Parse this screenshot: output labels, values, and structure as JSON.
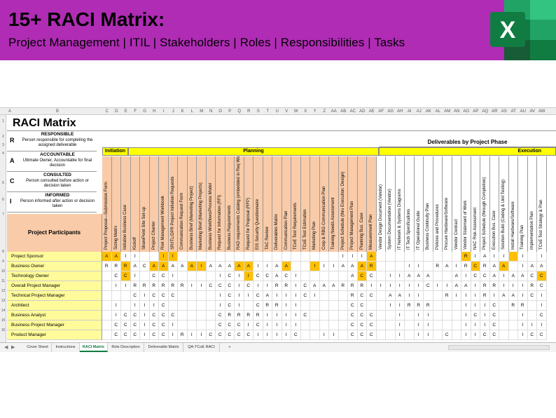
{
  "banner": {
    "title": "15+ RACI Matrix:",
    "subtitle": "Project Management | ITIL | Stakeholders | Roles | Responsibilities | Tasks",
    "logo_letter": "X",
    "colors": {
      "banner": "#b02cb5",
      "excel_dark": "#185c37",
      "excel_mid": "#21a366",
      "excel_light": "#33c481"
    }
  },
  "sheet": {
    "columns": [
      "A",
      "B",
      "C",
      "D",
      "E",
      "F",
      "G",
      "H",
      "I",
      "J",
      "K",
      "L",
      "M",
      "N",
      "O",
      "P",
      "Q",
      "R",
      "S",
      "T",
      "U",
      "V",
      "W",
      "X",
      "Y",
      "Z",
      "AA",
      "AB",
      "AC",
      "AD",
      "AE",
      "AF",
      "AG",
      "AH",
      "AI",
      "AJ",
      "AK",
      "AL",
      "AM",
      "AN",
      "AO",
      "AP",
      "AQ",
      "AR",
      "AS",
      "AT",
      "AU",
      "AV",
      "AW"
    ],
    "rows": [
      "1",
      "2",
      "3",
      "4",
      "5",
      "6",
      "7",
      "8",
      "9",
      "10",
      "11",
      "12",
      "13",
      "14",
      "15",
      "16"
    ],
    "matrix_title": "RACI  Matrix",
    "legend": [
      {
        "letter": "R",
        "head": "RESPONSIBLE",
        "desc": "Person responsible for completing the assigned deliverable"
      },
      {
        "letter": "A",
        "head": "ACCOUNTABLE",
        "desc": "Ultimate Owner, Accountable for final decision"
      },
      {
        "letter": "C",
        "head": "CONSULTED",
        "desc": "Person consulted before action or decision taken"
      },
      {
        "letter": "I",
        "head": "INFORMED",
        "desc": "Person informed after action or decision taken"
      }
    ],
    "deliverables_header": "Deliverables by Project Phase",
    "phases": {
      "initiation": "Initiation",
      "planning": "Planning",
      "execution": "Execution"
    },
    "participants_header": "Project Participants",
    "deliverables": [
      "Project Proposal—Submission Form",
      "Sizing Matrix",
      "Initiation Business Case",
      "Kickoff",
      "SharePoint Site Set-up",
      "Project Charter",
      "Risk Management Workbook",
      "SR/ITL/DPR Project Initiation Requests",
      "Communication Request Form",
      "Business Brief (Marketing Project)",
      "Marketing Brief (Marketing Projects)",
      "Business Workflows/Process Model",
      "Request for Information (RFI)",
      "Business Requirements",
      "RAD requirements Catalog (embedded in Req Workbook)",
      "Request for Proposal (RFP)",
      "EIS Security Questionnaire",
      "TAC Review",
      "Deliverables Matrix",
      "Communication Plan",
      "TCoE Test Requirements",
      "TCoE Test Estimation",
      "Marketing Plan",
      "Corp & RBG Communication Plan",
      "Training Needs Assessment",
      "Project Schedule (thru Execution: Design)",
      "Project Management Plan",
      "Planning Bus. Case",
      "Measurement Plan",
      "Vendor Design Document (Vendor)",
      "System Documentation (Vendor)",
      "IT Network & Systems Diagrams",
      "IT Tech Specifications",
      "IT Operational Guide",
      "Business Continuity Plan",
      "Policies and Procedures",
      "Procure Hardware/Software",
      "Vendor Contract",
      "Vendor Statement of Work",
      "NAC Risk Assessment",
      "Project Schedule (through Completion)",
      "Execution Bus. Case",
      "Solution Build (Coding & Unit Testing)",
      "Install Hardware/Software",
      "Training Plan",
      "Implementation Plan",
      "TCoE Test Strategy & Plan"
    ],
    "participants": [
      {
        "name": "Project Sponsor",
        "cells": [
          "A",
          "A",
          "I",
          "I",
          "",
          "",
          "I",
          "I",
          "",
          "",
          "",
          "",
          "",
          "",
          "",
          "",
          "",
          "",
          "",
          "",
          "",
          "",
          "",
          "",
          "",
          "I",
          "I",
          "I",
          "A",
          "",
          "",
          "",
          "",
          "",
          "",
          "",
          "",
          "",
          "R",
          "I",
          "A",
          "I",
          "I",
          "",
          "I",
          "",
          "I"
        ]
      },
      {
        "name": "Business Owner",
        "cells": [
          "R",
          "R",
          "R",
          "A",
          "C",
          "A",
          "A",
          "A",
          "A",
          "A",
          "I",
          "A",
          "A",
          "A",
          "A",
          "A",
          "I",
          "I",
          "A",
          "A",
          "",
          "",
          "I",
          "I",
          "I",
          "A",
          "A",
          "A",
          "R",
          "",
          "",
          "",
          "I",
          "I",
          "",
          "R",
          "A",
          "I",
          "R",
          "C",
          "R",
          "A",
          "A",
          "",
          "I",
          "A",
          "A"
        ]
      },
      {
        "name": "Technology Owner",
        "cells": [
          "",
          "C",
          "C",
          "I",
          "",
          "C",
          "C",
          "I",
          "",
          "",
          "",
          "",
          "I",
          "C",
          "I",
          "I",
          "C",
          "C",
          "A",
          "C",
          "I",
          "",
          "",
          "",
          "",
          "",
          "A",
          "C",
          "C",
          "",
          "I",
          "I",
          "A",
          "A",
          "A",
          "",
          "",
          "A",
          "I",
          "C",
          "C",
          "A",
          "I",
          "A",
          "A",
          "C",
          "C"
        ]
      },
      {
        "name": "Overall Project Manager",
        "cells": [
          "",
          "I",
          "I",
          "R",
          "R",
          "R",
          "R",
          "R",
          "R",
          "I",
          "I",
          "C",
          "C",
          "C",
          "I",
          "C",
          "I",
          "I",
          "R",
          "R",
          "I",
          "C",
          "A",
          "A",
          "A",
          "R",
          "R",
          "R",
          "I",
          "I",
          "I",
          "I",
          "I",
          "I",
          "C",
          "I",
          "I",
          "A",
          "A",
          "I",
          "R",
          "R",
          "I",
          "I",
          "I",
          "R",
          "C"
        ]
      },
      {
        "name": "Technical Project Manager",
        "cells": [
          "",
          "",
          "",
          "C",
          "I",
          "C",
          "C",
          "C",
          "",
          "",
          "",
          "",
          "I",
          "C",
          "I",
          "I",
          "C",
          "A",
          "I",
          "I",
          "I",
          "C",
          "I",
          "",
          "",
          "",
          "R",
          "C",
          "C",
          "",
          "A",
          "A",
          "I",
          "I",
          "",
          "",
          "R",
          "I",
          "I",
          "I",
          "R",
          "I",
          "A",
          "A",
          "I",
          "C",
          "I"
        ]
      },
      {
        "name": "Architect",
        "cells": [
          "",
          "I",
          "",
          "I",
          "I",
          "I",
          "C",
          "",
          "",
          "",
          "",
          "",
          "I",
          "C",
          "I",
          "",
          "C",
          "R",
          "R",
          "I",
          "I",
          "",
          "",
          "",
          "",
          "",
          "C",
          "C",
          "",
          "",
          "I",
          "I",
          "R",
          "R",
          "R",
          "",
          "",
          "",
          "I",
          "I",
          "I",
          "C",
          "",
          "R",
          "R",
          "",
          "I"
        ]
      },
      {
        "name": "Business Analyst",
        "cells": [
          "",
          "I",
          "C",
          "C",
          "I",
          "C",
          "C",
          "C",
          "",
          "",
          "",
          "",
          "C",
          "R",
          "R",
          "R",
          "R",
          "I",
          "I",
          "I",
          "I",
          "C",
          "",
          "",
          "",
          "",
          "C",
          "C",
          "C",
          "",
          "",
          "I",
          "",
          "I",
          "I",
          "",
          "",
          "",
          "I",
          "C",
          "I",
          "C",
          "",
          "",
          "I",
          "",
          "C"
        ]
      },
      {
        "name": "Business Project Manager",
        "cells": [
          "",
          "C",
          "C",
          "C",
          "I",
          "C",
          "C",
          "I",
          "",
          "",
          "",
          "",
          "C",
          "C",
          "C",
          "I",
          "C",
          "I",
          "I",
          "I",
          "I",
          "",
          "",
          "",
          "",
          "",
          "C",
          "C",
          "C",
          "",
          "",
          "I",
          "",
          "I",
          "I",
          "",
          "",
          "",
          "I",
          "I",
          "I",
          "C",
          "",
          "",
          "I",
          "I",
          "I"
        ]
      },
      {
        "name": "Product Manager",
        "cells": [
          "",
          "C",
          "C",
          "C",
          "I",
          "C",
          "C",
          "I",
          "R",
          "I",
          "I",
          "C",
          "C",
          "C",
          "C",
          "C",
          "I",
          "I",
          "I",
          "I",
          "C",
          "",
          "",
          "I",
          "I",
          "",
          "C",
          "C",
          "C",
          "",
          "",
          "I",
          "",
          "I",
          "I",
          "",
          "C",
          "",
          "I",
          "I",
          "C",
          "C",
          "",
          "",
          "I",
          "C",
          "C"
        ]
      }
    ],
    "highlights": [
      [
        0,
        0
      ],
      [
        0,
        1
      ],
      [
        0,
        6
      ],
      [
        0,
        7
      ],
      [
        0,
        28
      ],
      [
        0,
        38
      ],
      [
        0,
        43
      ],
      [
        1,
        2
      ],
      [
        1,
        5
      ],
      [
        1,
        6
      ],
      [
        1,
        9
      ],
      [
        1,
        10
      ],
      [
        1,
        14
      ],
      [
        1,
        15
      ],
      [
        1,
        19
      ],
      [
        1,
        22
      ],
      [
        1,
        27
      ],
      [
        1,
        28
      ],
      [
        1,
        39
      ],
      [
        1,
        42
      ],
      [
        2,
        2
      ],
      [
        2,
        15
      ],
      [
        2,
        27
      ],
      [
        2,
        46
      ]
    ]
  },
  "tabs": {
    "items": [
      "Cover Sheet",
      "Instructions",
      "RACI Matrix",
      "Role Description",
      "Deliverable Matrix",
      "QA-TCoE RACI"
    ],
    "active": "RACI Matrix",
    "add": "+"
  }
}
